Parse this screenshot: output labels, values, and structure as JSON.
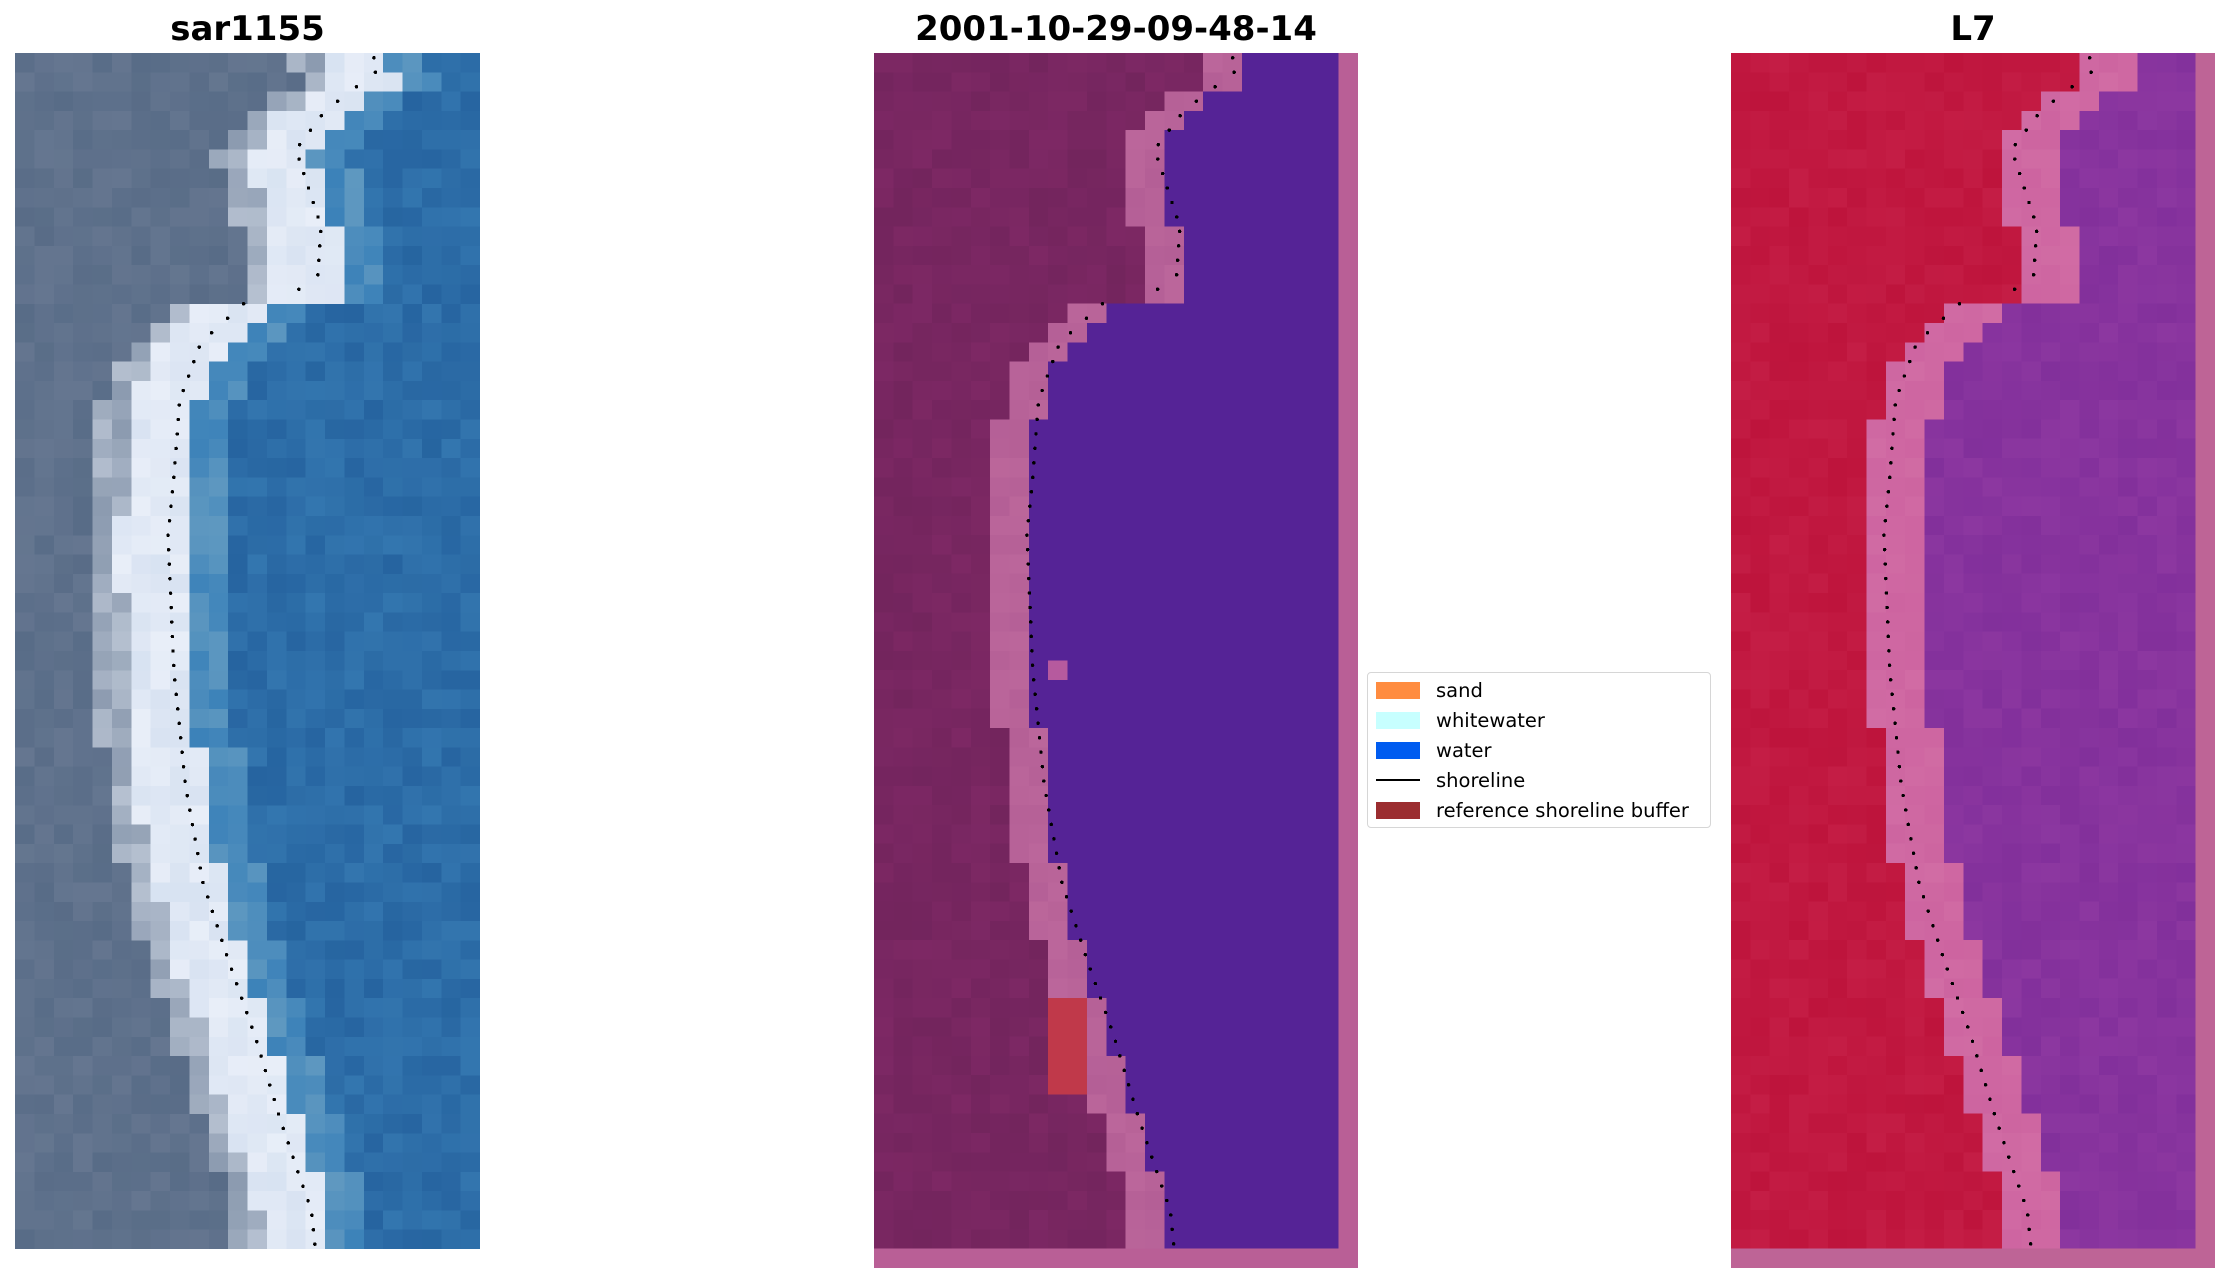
{
  "panels": [
    {
      "title": "sar1155",
      "image": "rgb-satellite-image"
    },
    {
      "title": "2001-10-29-09-48-14",
      "image": "classified-image-overlay"
    },
    {
      "title": "L7",
      "image": "water-index-image"
    }
  ],
  "legend": {
    "items": [
      {
        "label": "sand",
        "color": "#ff8c40",
        "kind": "patch"
      },
      {
        "label": "whitewater",
        "color": "#c7ffff",
        "kind": "patch"
      },
      {
        "label": "water",
        "color": "#005cf0",
        "kind": "patch"
      },
      {
        "label": "shoreline",
        "color": "#000000",
        "kind": "line"
      },
      {
        "label": "reference shoreline buffer",
        "color": "#9b2d30",
        "kind": "patch"
      }
    ]
  }
}
